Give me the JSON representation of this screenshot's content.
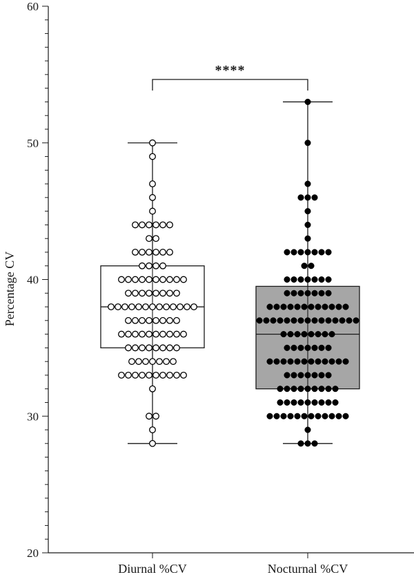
{
  "chart_data": {
    "type": "box",
    "ylabel": "Percentage CV",
    "xlabel": "",
    "ylim": [
      20,
      60
    ],
    "yticks": [
      20,
      30,
      40,
      50,
      60
    ],
    "categories": [
      "Diurnal %CV",
      "Nocturnal %CV"
    ],
    "grid": false,
    "series": [
      {
        "category": "Diurnal %CV",
        "marker": "open-circle",
        "box_fill": "#ffffff",
        "min": 28,
        "q1": 35,
        "median": 38,
        "q3": 41,
        "max": 50,
        "points": [
          {
            "y": 50,
            "n": 1
          },
          {
            "y": 49,
            "n": 1
          },
          {
            "y": 47,
            "n": 1
          },
          {
            "y": 46,
            "n": 1
          },
          {
            "y": 45,
            "n": 1
          },
          {
            "y": 44,
            "n": 6
          },
          {
            "y": 43,
            "n": 2
          },
          {
            "y": 42,
            "n": 6
          },
          {
            "y": 41,
            "n": 4
          },
          {
            "y": 40,
            "n": 10
          },
          {
            "y": 39,
            "n": 8
          },
          {
            "y": 38,
            "n": 13
          },
          {
            "y": 37,
            "n": 8
          },
          {
            "y": 36,
            "n": 10
          },
          {
            "y": 35,
            "n": 8
          },
          {
            "y": 34,
            "n": 7
          },
          {
            "y": 33,
            "n": 10
          },
          {
            "y": 32,
            "n": 1
          },
          {
            "y": 30,
            "n": 2
          },
          {
            "y": 29,
            "n": 1
          },
          {
            "y": 28,
            "n": 1
          }
        ]
      },
      {
        "category": "Nocturnal %CV",
        "marker": "filled-circle",
        "box_fill": "#a6a6a6",
        "min": 28,
        "q1": 32,
        "median": 36,
        "q3": 39.5,
        "max": 53,
        "points": [
          {
            "y": 53,
            "n": 1
          },
          {
            "y": 50,
            "n": 1
          },
          {
            "y": 47,
            "n": 1
          },
          {
            "y": 46,
            "n": 3
          },
          {
            "y": 45,
            "n": 1
          },
          {
            "y": 44,
            "n": 1
          },
          {
            "y": 43,
            "n": 1
          },
          {
            "y": 42,
            "n": 7
          },
          {
            "y": 41,
            "n": 2
          },
          {
            "y": 40,
            "n": 7
          },
          {
            "y": 39,
            "n": 7
          },
          {
            "y": 38,
            "n": 12
          },
          {
            "y": 37,
            "n": 15
          },
          {
            "y": 36,
            "n": 8
          },
          {
            "y": 35,
            "n": 7
          },
          {
            "y": 34,
            "n": 12
          },
          {
            "y": 33,
            "n": 7
          },
          {
            "y": 32,
            "n": 9
          },
          {
            "y": 31,
            "n": 9
          },
          {
            "y": 30,
            "n": 12
          },
          {
            "y": 29,
            "n": 1
          },
          {
            "y": 28,
            "n": 3
          }
        ]
      }
    ],
    "annotations": [
      {
        "type": "significance",
        "text": "****",
        "between": [
          "Diurnal %CV",
          "Nocturnal %CV"
        ]
      }
    ]
  },
  "colors": {
    "axis": "#1a1a1a",
    "box_stroke": "#1a1a1a",
    "nocturnal_fill": "#a6a6a6",
    "point_dark": "#000000"
  }
}
